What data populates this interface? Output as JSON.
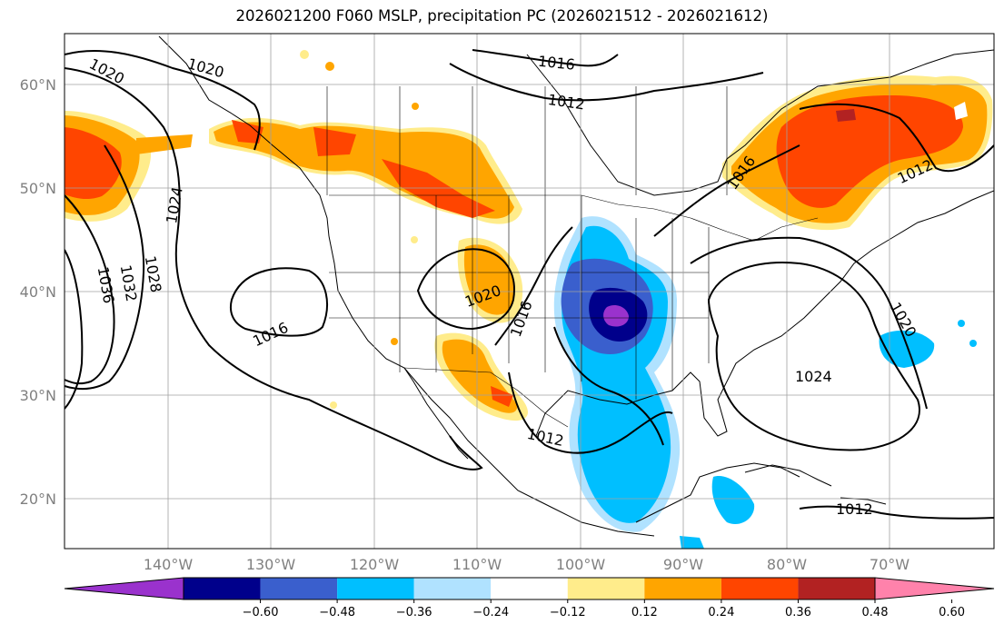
{
  "title": "2026021200 F060 MSLP, precipitation PC (2026021512 - 2026021612)",
  "map": {
    "lat_labels": [
      "60°N",
      "50°N",
      "40°N",
      "30°N",
      "20°N"
    ],
    "lon_labels": [
      "140°W",
      "130°W",
      "120°W",
      "110°W",
      "100°W",
      "90°W",
      "80°W",
      "70°W"
    ],
    "isobar_labels": [
      "1020",
      "1020",
      "1016",
      "1012",
      "1016",
      "1012",
      "1024",
      "1028",
      "1032",
      "1036",
      "1016",
      "1020",
      "1016",
      "1020",
      "1024",
      "1012",
      "1012"
    ]
  },
  "colorbar": {
    "ticks": [
      "−0.60",
      "−0.48",
      "−0.36",
      "−0.24",
      "−0.12",
      "0.12",
      "0.24",
      "0.36",
      "0.48",
      "0.60"
    ],
    "colors": [
      "#9a32cd",
      "#00008b",
      "#3a5fcd",
      "#00bfff",
      "#b0e2ff",
      "#ffffff",
      "#ffec8b",
      "#ffa500",
      "#ff4500",
      "#b22222",
      "#ff82ab"
    ]
  },
  "colors": {
    "neg_strong": "#9a32cd",
    "neg_dark": "#00008b",
    "neg_mid": "#3a5fcd",
    "neg_light": "#00bfff",
    "neg_pale": "#b0e2ff",
    "pos_pale": "#ffec8b",
    "pos_mid": "#ffa500",
    "pos_strong": "#ff4500",
    "pos_dark": "#b22222",
    "pos_extreme": "#ff82ab"
  }
}
